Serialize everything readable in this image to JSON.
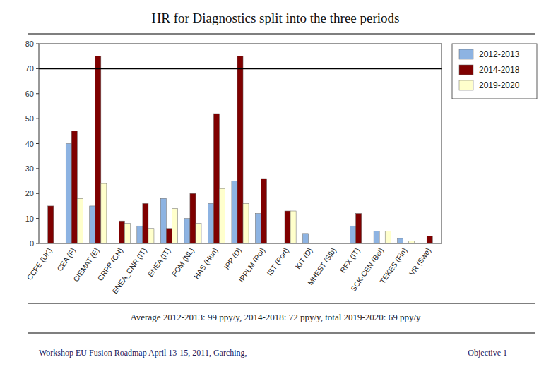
{
  "chart_data": {
    "type": "bar",
    "title": "HR for Diagnostics split into the three periods",
    "categories": [
      "CCFE (UK)",
      "CEA (F)",
      "CIEMAT (E)",
      "CRPP (CH)",
      "ENEA_CNR (IT)",
      "ENEA (IT)",
      "FOM (NL)",
      "HAS (Hun)",
      "IPP (D)",
      "IPPLM (Pol)",
      "IST (Port)",
      "KIT (D)",
      "MHEST (Slb)",
      "RFX (IT)",
      "SCK-CEN (Bel)",
      "TEKES (Fin)",
      "VR (Swe)"
    ],
    "series": [
      {
        "name": "2012-2013",
        "color": "#8db3e2",
        "values": [
          0,
          40,
          15,
          0,
          7,
          18,
          10,
          16,
          25,
          12,
          0,
          4,
          0,
          7,
          5,
          2,
          0
        ]
      },
      {
        "name": "2014-2018",
        "color": "#7f0000",
        "values": [
          15,
          45,
          75,
          9,
          16,
          6,
          20,
          52,
          75,
          26,
          13,
          0,
          0,
          12,
          0,
          0,
          3
        ]
      },
      {
        "name": "2019-2020",
        "color": "#ffffcc",
        "values": [
          0,
          18,
          24,
          8,
          6,
          14,
          8,
          22,
          16,
          0,
          13,
          0,
          0,
          0,
          5,
          1,
          0
        ]
      }
    ],
    "reference_line": 70,
    "ylim": [
      0,
      80
    ],
    "yticks": [
      0,
      10,
      20,
      30,
      40,
      50,
      60,
      70,
      80
    ],
    "grid": false,
    "legend": "right",
    "annotations": [
      "Average 2012-2013: 99 ppy/y, 2014-2018: 72 ppy/y,  total 2019-2020: 69 ppy/y",
      "Workshop EU Fusion Roadmap April 13-15, 2011, Garching,",
      "Objective 1"
    ]
  }
}
